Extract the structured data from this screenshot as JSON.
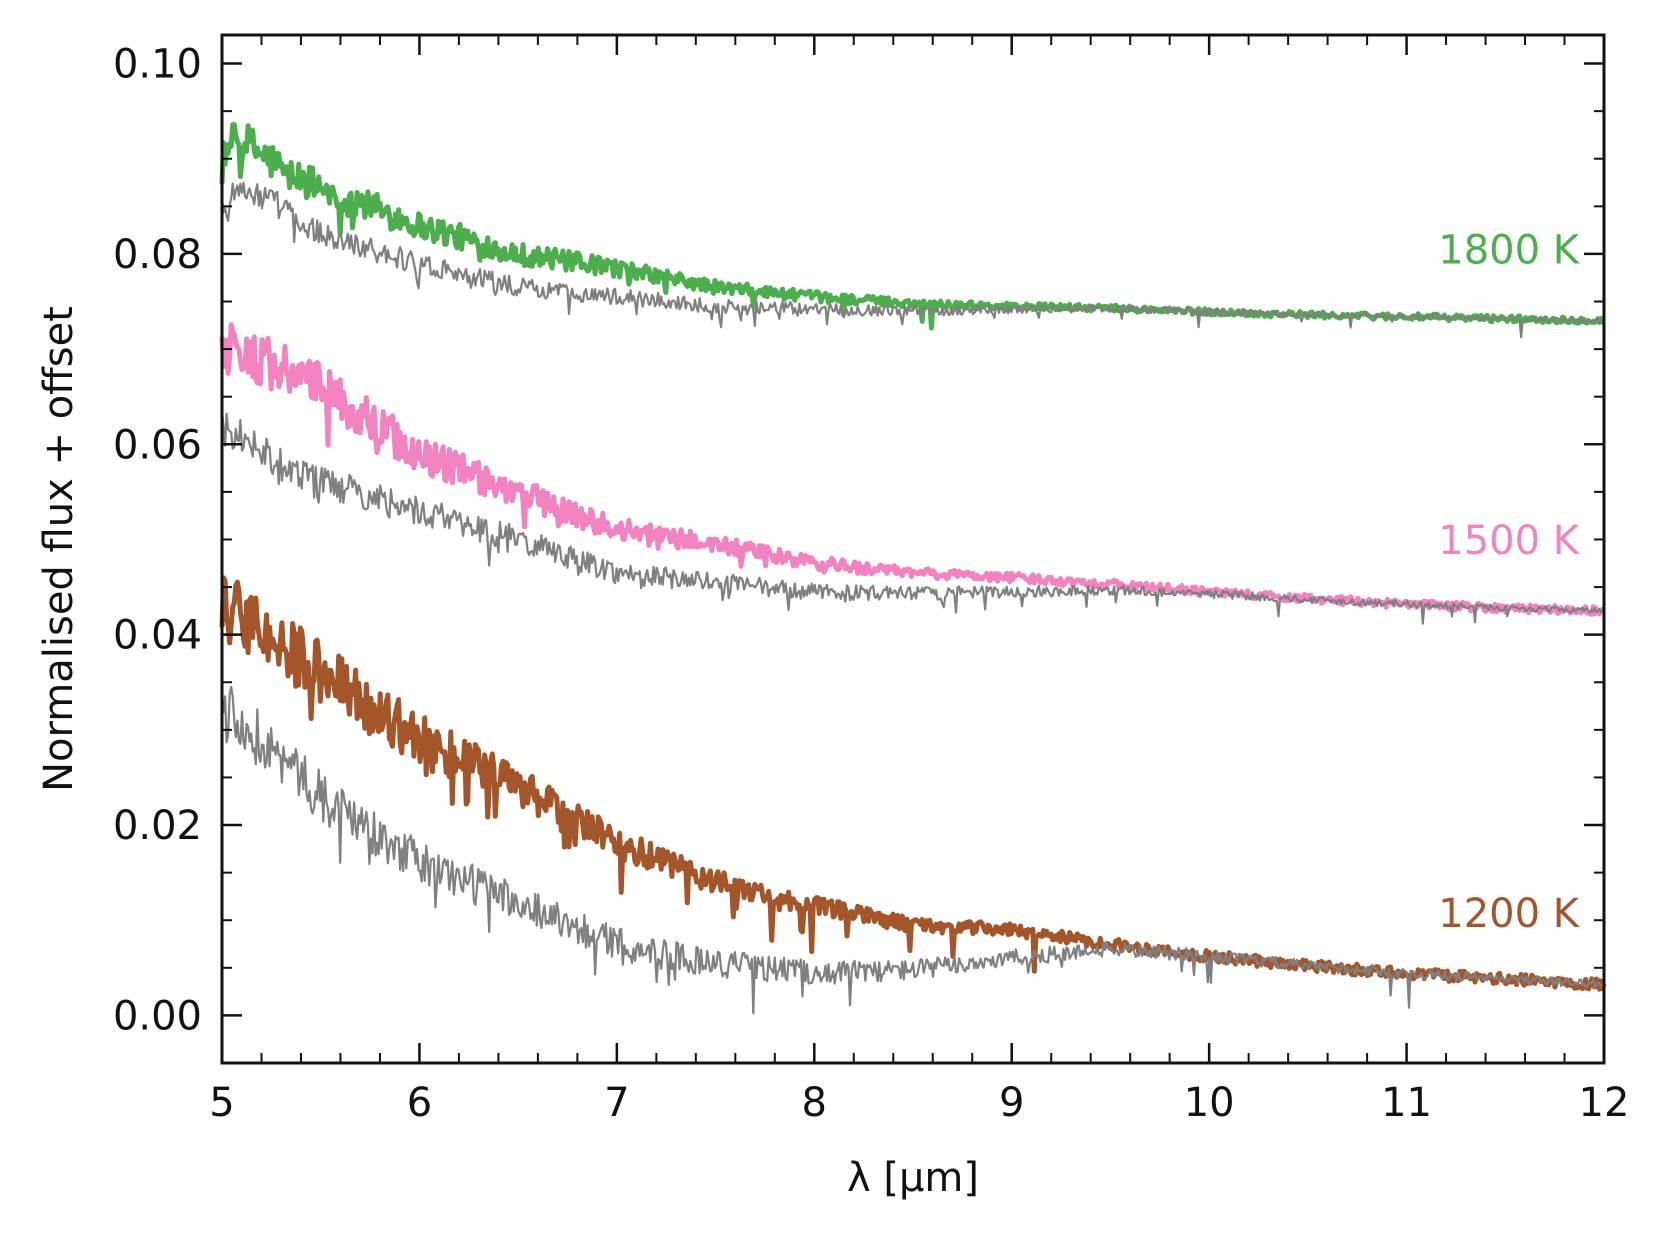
{
  "chart_data": {
    "type": "line",
    "title": "",
    "xlabel": "λ [μm]",
    "ylabel": "Normalised flux + offset",
    "xlim": [
      5,
      12
    ],
    "ylim": [
      -0.005,
      0.103
    ],
    "xticks": [
      5,
      6,
      7,
      8,
      9,
      10,
      11,
      12
    ],
    "xtick_labels": [
      "5",
      "6",
      "7",
      "8",
      "9",
      "10",
      "11",
      "12"
    ],
    "yticks": [
      0.0,
      0.02,
      0.04,
      0.06,
      0.08,
      0.1
    ],
    "ytick_labels": [
      "0.00",
      "0.02",
      "0.04",
      "0.06",
      "0.08",
      "0.10"
    ],
    "grid": false,
    "colors": {
      "green": "#4cae4c",
      "pink": "#f382c1",
      "brown": "#a5552a",
      "observed": "#808080",
      "frame": "#111111"
    },
    "series": [
      {
        "name": "1800 K",
        "label": "1800 K",
        "color": "#4cae4c",
        "noise_model": 0.0045,
        "noise_obs": 0.003,
        "x": [
          5.0,
          5.1,
          5.3,
          5.5,
          6.0,
          6.5,
          7.0,
          7.5,
          8.0,
          8.5,
          9.0,
          9.5,
          10.0,
          10.5,
          11.0,
          11.5,
          12.0
        ],
        "model": [
          0.091,
          0.092,
          0.089,
          0.087,
          0.083,
          0.08,
          0.0785,
          0.0765,
          0.0755,
          0.0748,
          0.0745,
          0.0743,
          0.0739,
          0.0736,
          0.0734,
          0.0732,
          0.073
        ],
        "observed": [
          0.085,
          0.087,
          0.085,
          0.082,
          0.079,
          0.0765,
          0.0755,
          0.0745,
          0.0742,
          0.074,
          0.0742,
          0.0743,
          0.0739,
          0.0736,
          0.0734,
          0.0732,
          0.073
        ]
      },
      {
        "name": "1500 K",
        "label": "1500 K",
        "color": "#f382c1",
        "noise_model": 0.006,
        "noise_obs": 0.004,
        "x": [
          5.0,
          5.1,
          5.3,
          5.5,
          6.0,
          6.5,
          7.0,
          7.5,
          8.0,
          8.5,
          9.0,
          9.5,
          10.0,
          10.5,
          11.0,
          11.5,
          12.0
        ],
        "model": [
          0.07,
          0.07,
          0.068,
          0.066,
          0.059,
          0.055,
          0.051,
          0.0495,
          0.0475,
          0.0465,
          0.046,
          0.0453,
          0.0445,
          0.0438,
          0.0432,
          0.0428,
          0.0425
        ],
        "observed": [
          0.062,
          0.061,
          0.058,
          0.056,
          0.053,
          0.05,
          0.0465,
          0.0455,
          0.0445,
          0.0443,
          0.0445,
          0.0447,
          0.0443,
          0.0437,
          0.0432,
          0.0428,
          0.0425
        ]
      },
      {
        "name": "1200 K",
        "label": "1200 K",
        "color": "#a5552a",
        "noise_model": 0.008,
        "noise_obs": 0.006,
        "x": [
          5.0,
          5.1,
          5.3,
          5.5,
          6.0,
          6.5,
          7.0,
          7.5,
          8.0,
          8.5,
          9.0,
          9.5,
          10.0,
          10.5,
          11.0,
          11.5,
          12.0
        ],
        "model": [
          0.042,
          0.042,
          0.039,
          0.036,
          0.029,
          0.024,
          0.018,
          0.014,
          0.0115,
          0.0095,
          0.009,
          0.0075,
          0.0062,
          0.0052,
          0.0044,
          0.0038,
          0.0033
        ],
        "observed": [
          0.033,
          0.031,
          0.027,
          0.023,
          0.016,
          0.012,
          0.0075,
          0.0055,
          0.0045,
          0.0048,
          0.006,
          0.007,
          0.0062,
          0.0052,
          0.0044,
          0.0038,
          0.0033
        ]
      }
    ]
  }
}
